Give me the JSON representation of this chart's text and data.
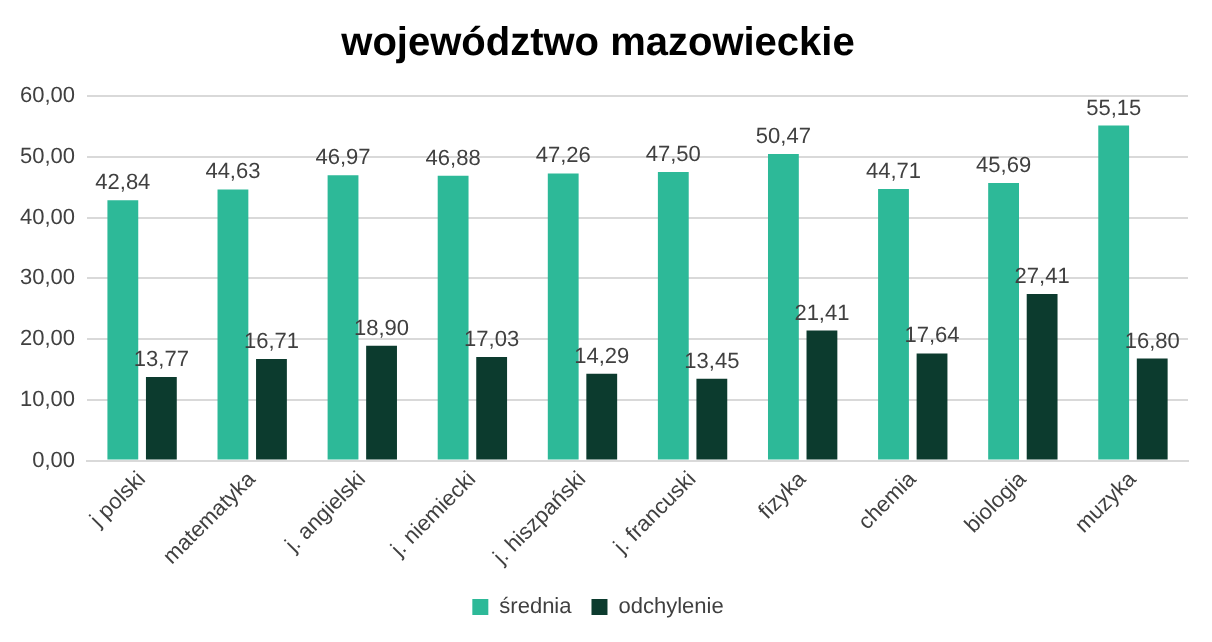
{
  "chart_data": {
    "type": "bar",
    "title": "województwo mazowieckie",
    "categories": [
      "j polski",
      "matematyka",
      "j. angielski",
      "j. niemiecki",
      "j. hiszpański",
      "j. francuski",
      "fizyka",
      "chemia",
      "biologia",
      "muzyka"
    ],
    "series": [
      {
        "name": "średnia",
        "color": "#2db998",
        "values": [
          42.84,
          44.63,
          46.97,
          46.88,
          47.26,
          47.5,
          50.47,
          44.71,
          45.69,
          55.15
        ],
        "value_labels": [
          "42,84",
          "44,63",
          "46,97",
          "46,88",
          "47,26",
          "47,50",
          "50,47",
          "44,71",
          "45,69",
          "55,15"
        ]
      },
      {
        "name": "odchylenie",
        "color": "#0c3b2e",
        "values": [
          13.77,
          16.71,
          18.9,
          17.03,
          14.29,
          13.45,
          21.41,
          17.64,
          27.41,
          16.8
        ],
        "value_labels": [
          "13,77",
          "16,71",
          "18,90",
          "17,03",
          "14,29",
          "13,45",
          "21,41",
          "17,64",
          "27,41",
          "16,80"
        ]
      }
    ],
    "ylim": [
      0,
      60
    ],
    "yticks": [
      {
        "value": 0,
        "label": "0,00"
      },
      {
        "value": 10,
        "label": "10,00"
      },
      {
        "value": 20,
        "label": "20,00"
      },
      {
        "value": 30,
        "label": "30,00"
      },
      {
        "value": 40,
        "label": "40,00"
      },
      {
        "value": 50,
        "label": "50,00"
      },
      {
        "value": 60,
        "label": "60,00"
      }
    ],
    "grid": "y",
    "legend": "bottom"
  }
}
